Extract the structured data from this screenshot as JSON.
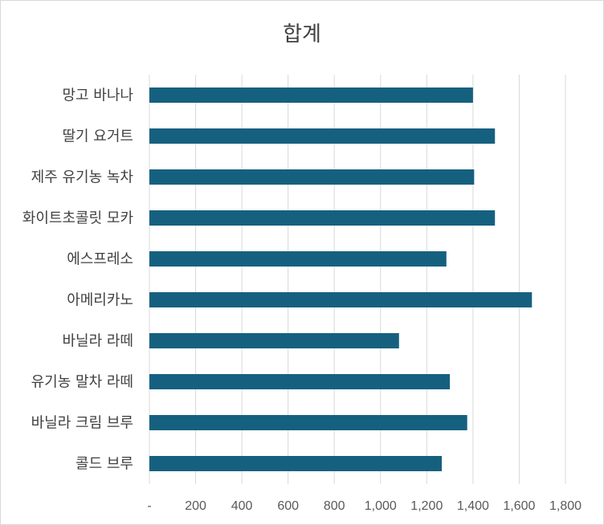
{
  "chart_data": {
    "type": "bar",
    "orientation": "horizontal",
    "title": "합계",
    "categories": [
      "망고 바나나",
      "딸기 요거트",
      "제주 유기농 녹차",
      "화이트초콜릿 모카",
      "에스프레소",
      "아메리카노",
      "바닐라 라떼",
      "유기농 말차 라떼",
      "바닐라 크림 브루",
      "콜드 브루"
    ],
    "values": [
      1400,
      1495,
      1405,
      1495,
      1285,
      1655,
      1080,
      1300,
      1375,
      1265
    ],
    "xlim": [
      0,
      1800
    ],
    "xticks": [
      "-",
      "200",
      "400",
      "600",
      "800",
      "1,000",
      "1,200",
      "1,400",
      "1,600",
      "1,800"
    ],
    "grid": true,
    "legend": "none",
    "bar_color": "#16607f",
    "grid_color": "#d9d9d9"
  }
}
